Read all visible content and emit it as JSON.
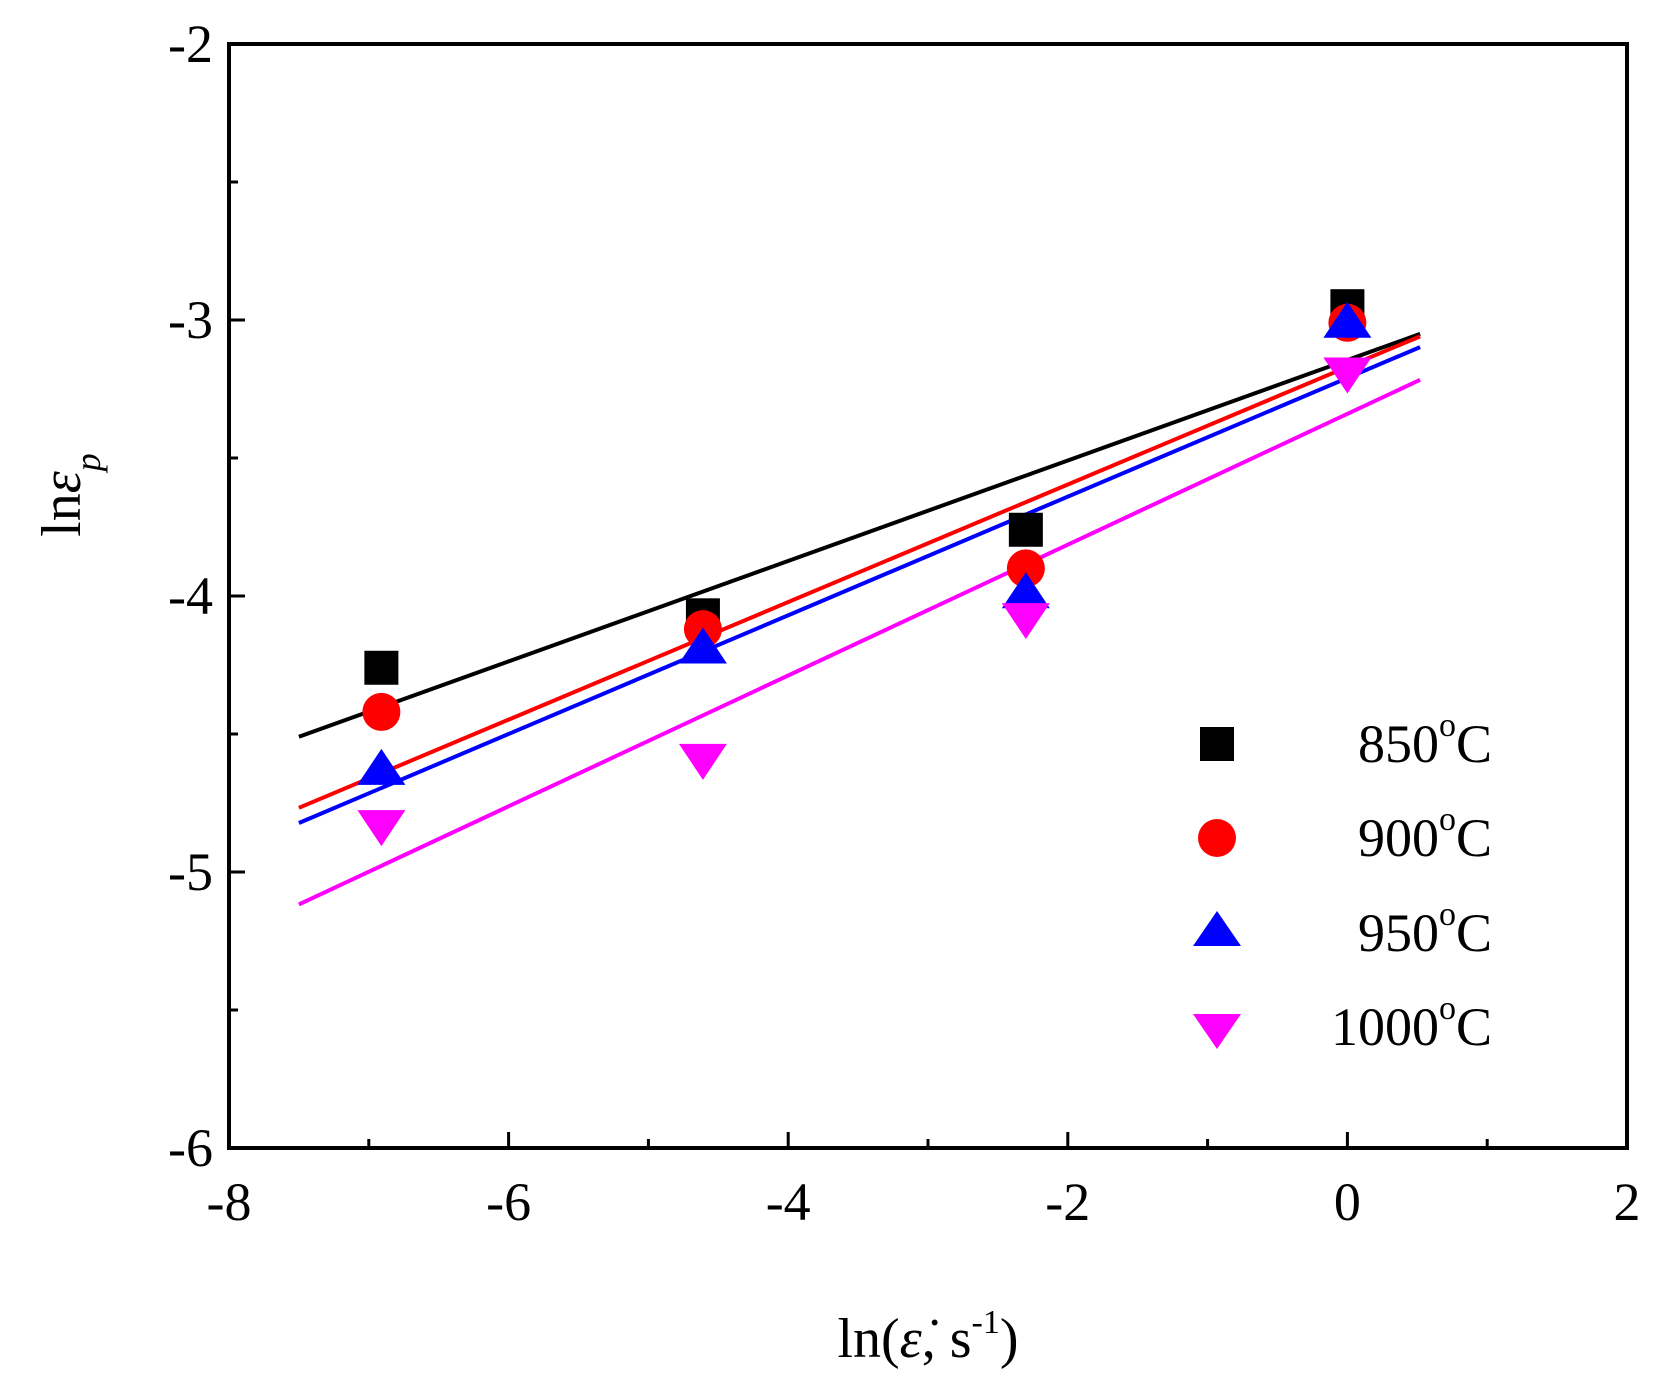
{
  "chart_data": {
    "type": "scatter",
    "title": "",
    "xlabel": "ln(ε̇, s-1)",
    "xlabel_parts": {
      "prefix": "ln(",
      "symbol": "ε̇",
      "middle": ", s",
      "sup": "-1",
      "suffix": ")"
    },
    "ylabel": "lnεp",
    "ylabel_parts": {
      "prefix": "ln",
      "symbol": "ε",
      "sub": "p"
    },
    "xlim": [
      -8,
      2
    ],
    "ylim": [
      -6,
      -2
    ],
    "xticks": [
      -8,
      -6,
      -4,
      -2,
      0,
      2
    ],
    "xtick_labels": [
      "-8",
      "-6",
      "-4",
      "-2",
      "0",
      "2"
    ],
    "yticks": [
      -6,
      -5,
      -4,
      -3,
      -2
    ],
    "ytick_labels": [
      "-6",
      "-5",
      "-4",
      "-3",
      "-2"
    ],
    "grid": false,
    "legend_position": "bottom-right",
    "fit_range": [
      -7.5,
      0.52
    ],
    "series": [
      {
        "name": "850°C",
        "temp": "850",
        "unit": "C",
        "degree": "o",
        "marker": "square",
        "color": "#000000",
        "x": [
          -6.91,
          -4.61,
          -2.3,
          0.0
        ],
        "y": [
          -4.26,
          -4.07,
          -3.76,
          -2.95
        ],
        "fit": {
          "slope": 0.182,
          "intercept": -3.145
        }
      },
      {
        "name": "900°C",
        "temp": "900",
        "unit": "C",
        "degree": "o",
        "marker": "circle",
        "color": "#ff0000",
        "x": [
          -6.91,
          -4.61,
          -2.3,
          0.0
        ],
        "y": [
          -4.42,
          -4.12,
          -3.9,
          -3.01
        ],
        "fit": {
          "slope": 0.213,
          "intercept": -3.17
        }
      },
      {
        "name": "950°C",
        "temp": "950",
        "unit": "C",
        "degree": "o",
        "marker": "triangle-up",
        "color": "#0000ff",
        "x": [
          -6.91,
          -4.61,
          -2.3,
          0.0
        ],
        "y": [
          -4.63,
          -4.19,
          -3.99,
          -3.01
        ],
        "fit": {
          "slope": 0.215,
          "intercept": -3.21
        }
      },
      {
        "name": "1000°C",
        "temp": "1000",
        "unit": "C",
        "degree": "o",
        "marker": "triangle-down",
        "color": "#ff00ff",
        "x": [
          -6.91,
          -4.61,
          -2.3,
          0.0
        ],
        "y": [
          -4.83,
          -4.59,
          -4.08,
          -3.19
        ],
        "fit": {
          "slope": 0.237,
          "intercept": -3.34
        }
      }
    ]
  }
}
